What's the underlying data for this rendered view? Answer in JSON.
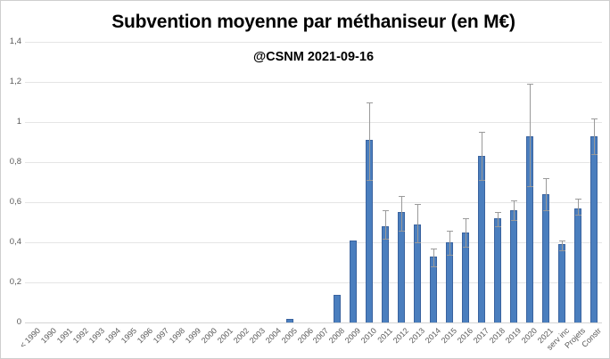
{
  "chart_data": {
    "type": "bar",
    "title": "Subvention moyenne par méthaniseur (en M€)",
    "subtitle": "@CSNM 2021-09-16",
    "categories": [
      "< 1990",
      "1990",
      "1991",
      "1992",
      "1993",
      "1994",
      "1995",
      "1996",
      "1997",
      "1998",
      "1999",
      "2000",
      "2001",
      "2002",
      "2003",
      "2004",
      "2005",
      "2006",
      "2007",
      "2008",
      "2009",
      "2010",
      "2011",
      "2012",
      "2013",
      "2014",
      "2015",
      "2016",
      "2017",
      "2018",
      "2019",
      "2020",
      "2021",
      "serv inc",
      "Projets",
      "Constr"
    ],
    "values": [
      0,
      0,
      0,
      0,
      0,
      0,
      0,
      0,
      0,
      0,
      0,
      0,
      0,
      0,
      0,
      0,
      0.02,
      0,
      0,
      0.14,
      0.41,
      0.91,
      0.48,
      0.55,
      0.49,
      0.33,
      0.4,
      0.45,
      0.83,
      0.52,
      0.56,
      0.93,
      0.64,
      0.39,
      0.57,
      0.93
    ],
    "error_low": [
      null,
      null,
      null,
      null,
      null,
      null,
      null,
      null,
      null,
      null,
      null,
      null,
      null,
      null,
      null,
      null,
      null,
      null,
      null,
      null,
      null,
      0.71,
      0.42,
      0.46,
      0.4,
      0.28,
      0.34,
      0.38,
      0.71,
      0.48,
      0.51,
      0.68,
      0.56,
      0.36,
      0.54,
      0.84
    ],
    "error_high": [
      null,
      null,
      null,
      null,
      null,
      null,
      null,
      null,
      null,
      null,
      null,
      null,
      null,
      null,
      null,
      null,
      null,
      null,
      null,
      null,
      null,
      1.1,
      0.56,
      0.63,
      0.59,
      0.37,
      0.46,
      0.52,
      0.95,
      0.55,
      0.61,
      1.19,
      0.72,
      0.41,
      0.62,
      1.02
    ],
    "xlabel": "",
    "ylabel": "",
    "ylim": [
      0,
      1.4
    ],
    "ytick_step": 0.2,
    "ytick_labels": [
      "0",
      "0,2",
      "0,4",
      "0,6",
      "0,8",
      "1",
      "1,2",
      "1,4"
    ],
    "grid": true,
    "legend": "none",
    "colors": {
      "bar_fill": "#4a7ebe",
      "bar_border": "#3a639f",
      "error_bar": "#9a9a9a",
      "gridline": "#e5e5e5",
      "axis_line": "#d4d4d4",
      "tick_label": "#595959",
      "title": "#000000"
    }
  }
}
